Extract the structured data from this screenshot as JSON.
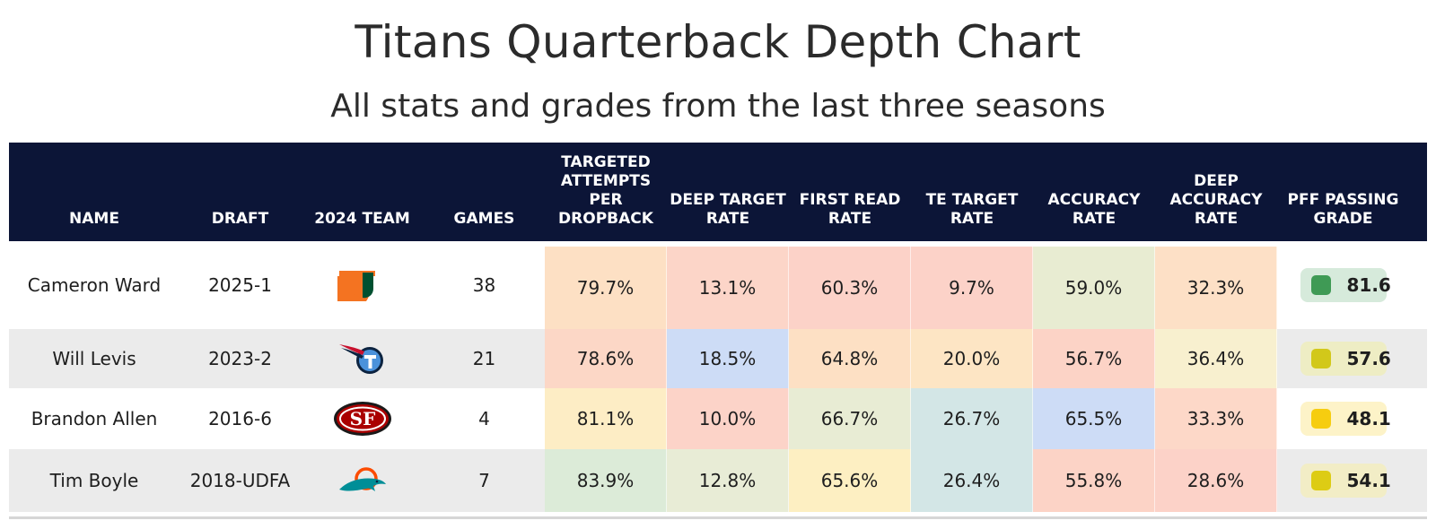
{
  "title": "Titans Quarterback Depth Chart",
  "subtitle": "All stats and grades from the last three seasons",
  "colors": {
    "header_bg": "#0c1537",
    "row_alt": "#ebebeb"
  },
  "chart_data": {
    "type": "table",
    "columns": [
      "NAME",
      "DRAFT",
      "2024 TEAM",
      "GAMES",
      "TARGETED ATTEMPTS PER DROPBACK",
      "DEEP TARGET RATE",
      "FIRST READ RATE",
      "TE TARGET RATE",
      "ACCURACY RATE",
      "DEEP ACCURACY RATE",
      "PFF PASSING GRADE"
    ],
    "rows": [
      {
        "name": "Cameron Ward",
        "draft": "2025-1",
        "team_icon": "miami-hurricanes-logo-icon",
        "games": "38",
        "metrics": [
          "79.7%",
          "13.1%",
          "60.3%",
          "9.7%",
          "59.0%",
          "32.3%"
        ],
        "metric_colors": [
          "#fde0c4",
          "#fcd5c8",
          "#fcd2c8",
          "#fcd2c8",
          "#e8ecd2",
          "#fde0c6"
        ],
        "grade": "81.6",
        "grade_dot": "#3f9a55",
        "grade_bg": "#d6eadb"
      },
      {
        "name": "Will Levis",
        "draft": "2023-2",
        "team_icon": "tennessee-titans-logo-icon",
        "games": "21",
        "metrics": [
          "78.6%",
          "18.5%",
          "64.8%",
          "20.0%",
          "56.7%",
          "36.4%"
        ],
        "metric_colors": [
          "#fcd7c6",
          "#cddcf6",
          "#fde0c4",
          "#fde5c4",
          "#fcd3c6",
          "#f8f0cf"
        ],
        "grade": "57.6",
        "grade_dot": "#d2c81a",
        "grade_bg": "#eeedc4"
      },
      {
        "name": "Brandon Allen",
        "draft": "2016-6",
        "team_icon": "san-francisco-49ers-logo-icon",
        "games": "4",
        "metrics": [
          "81.1%",
          "10.0%",
          "66.7%",
          "26.7%",
          "65.5%",
          "33.3%"
        ],
        "metric_colors": [
          "#fdedc5",
          "#fcd3c8",
          "#e8ecd4",
          "#d3e6e6",
          "#cddcf6",
          "#fdd8c8"
        ],
        "grade": "48.1",
        "grade_dot": "#f6cd10",
        "grade_bg": "#fdf3c8"
      },
      {
        "name": "Tim Boyle",
        "draft": "2018-UDFA",
        "team_icon": "miami-dolphins-logo-icon",
        "games": "7",
        "metrics": [
          "83.9%",
          "12.8%",
          "65.6%",
          "26.4%",
          "55.8%",
          "28.6%"
        ],
        "metric_colors": [
          "#dcebd8",
          "#e8ecd6",
          "#fdefc2",
          "#d3e6e6",
          "#fcd3c6",
          "#fcd2c8"
        ],
        "grade": "54.1",
        "grade_dot": "#ddcc14",
        "grade_bg": "#f2edc6"
      }
    ]
  }
}
